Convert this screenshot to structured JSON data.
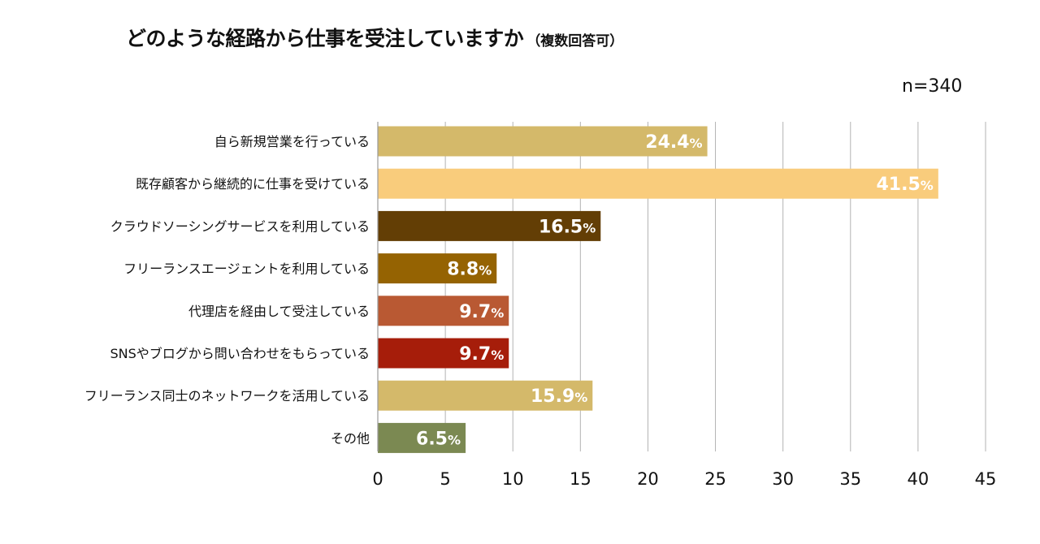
{
  "title": "どのような経路から仕事を受注していますか",
  "subtitle": "（複数回答可）",
  "n_label": "n=340",
  "chart_data": {
    "type": "bar",
    "orientation": "horizontal",
    "categories": [
      "自ら新規営業を行っている",
      "既存顧客から継続的に仕事を受けている",
      "クラウドソーシングサービスを利用している",
      "フリーランスエージェントを利用している",
      "代理店を経由して受注している",
      "SNSやブログから問い合わせをもらっている",
      "フリーランス同士のネットワークを活用している",
      "その他"
    ],
    "values": [
      24.4,
      41.5,
      16.5,
      8.8,
      9.7,
      9.7,
      15.9,
      6.5
    ],
    "value_suffix": "%",
    "bar_colors": [
      "#d4b96a",
      "#f9cc7c",
      "#633e05",
      "#956302",
      "#b95933",
      "#a61d0a",
      "#d4b96a",
      "#7b8952"
    ],
    "xlim": [
      0,
      45
    ],
    "xticks": [
      "0",
      "5",
      "10",
      "15",
      "20",
      "25",
      "30",
      "35",
      "40",
      "45"
    ],
    "grid": true,
    "legend": "none"
  }
}
